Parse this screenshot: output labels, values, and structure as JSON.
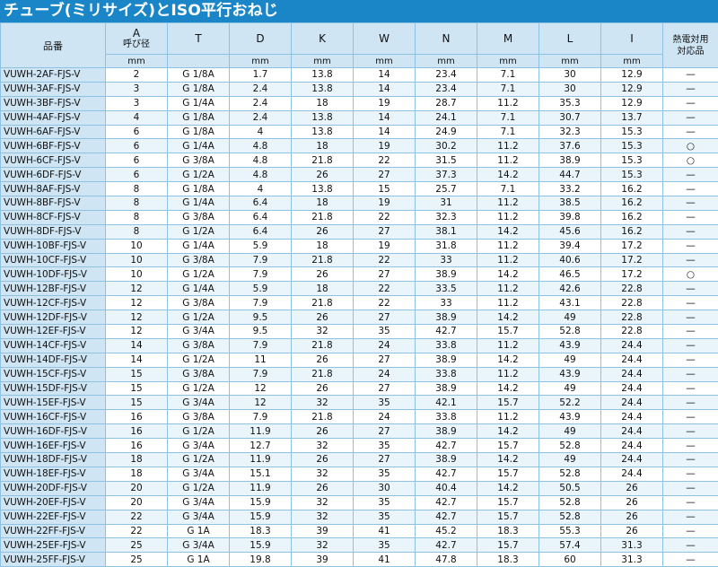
{
  "title": "チューブ(ミリサイズ)とISO平行おねじ",
  "header": {
    "part": "品番",
    "A": "A",
    "A_sub": "呼び径",
    "T": "T",
    "D": "D",
    "K": "K",
    "W": "W",
    "N": "N",
    "M": "M",
    "L": "L",
    "I": "I",
    "heat": "熱電対用\n対応品",
    "unit": "mm"
  },
  "rows": [
    [
      "VUWH-2AF-FJS-V",
      "2",
      "G 1/8A",
      "1.7",
      "13.8",
      "14",
      "23.4",
      "7.1",
      "30",
      "12.9",
      "—"
    ],
    [
      "VUWH-3AF-FJS-V",
      "3",
      "G 1/8A",
      "2.4",
      "13.8",
      "14",
      "23.4",
      "7.1",
      "30",
      "12.9",
      "—"
    ],
    [
      "VUWH-3BF-FJS-V",
      "3",
      "G 1/4A",
      "2.4",
      "18",
      "19",
      "28.7",
      "11.2",
      "35.3",
      "12.9",
      "—"
    ],
    [
      "VUWH-4AF-FJS-V",
      "4",
      "G 1/8A",
      "2.4",
      "13.8",
      "14",
      "24.1",
      "7.1",
      "30.7",
      "13.7",
      "—"
    ],
    [
      "VUWH-6AF-FJS-V",
      "6",
      "G 1/8A",
      "4",
      "13.8",
      "14",
      "24.9",
      "7.1",
      "32.3",
      "15.3",
      "—"
    ],
    [
      "VUWH-6BF-FJS-V",
      "6",
      "G 1/4A",
      "4.8",
      "18",
      "19",
      "30.2",
      "11.2",
      "37.6",
      "15.3",
      "○"
    ],
    [
      "VUWH-6CF-FJS-V",
      "6",
      "G 3/8A",
      "4.8",
      "21.8",
      "22",
      "31.5",
      "11.2",
      "38.9",
      "15.3",
      "○"
    ],
    [
      "VUWH-6DF-FJS-V",
      "6",
      "G 1/2A",
      "4.8",
      "26",
      "27",
      "37.3",
      "14.2",
      "44.7",
      "15.3",
      "—"
    ],
    [
      "VUWH-8AF-FJS-V",
      "8",
      "G 1/8A",
      "4",
      "13.8",
      "15",
      "25.7",
      "7.1",
      "33.2",
      "16.2",
      "—"
    ],
    [
      "VUWH-8BF-FJS-V",
      "8",
      "G 1/4A",
      "6.4",
      "18",
      "19",
      "31",
      "11.2",
      "38.5",
      "16.2",
      "—"
    ],
    [
      "VUWH-8CF-FJS-V",
      "8",
      "G 3/8A",
      "6.4",
      "21.8",
      "22",
      "32.3",
      "11.2",
      "39.8",
      "16.2",
      "—"
    ],
    [
      "VUWH-8DF-FJS-V",
      "8",
      "G 1/2A",
      "6.4",
      "26",
      "27",
      "38.1",
      "14.2",
      "45.6",
      "16.2",
      "—"
    ],
    [
      "VUWH-10BF-FJS-V",
      "10",
      "G 1/4A",
      "5.9",
      "18",
      "19",
      "31.8",
      "11.2",
      "39.4",
      "17.2",
      "—"
    ],
    [
      "VUWH-10CF-FJS-V",
      "10",
      "G 3/8A",
      "7.9",
      "21.8",
      "22",
      "33",
      "11.2",
      "40.6",
      "17.2",
      "—"
    ],
    [
      "VUWH-10DF-FJS-V",
      "10",
      "G 1/2A",
      "7.9",
      "26",
      "27",
      "38.9",
      "14.2",
      "46.5",
      "17.2",
      "○"
    ],
    [
      "VUWH-12BF-FJS-V",
      "12",
      "G 1/4A",
      "5.9",
      "18",
      "22",
      "33.5",
      "11.2",
      "42.6",
      "22.8",
      "—"
    ],
    [
      "VUWH-12CF-FJS-V",
      "12",
      "G 3/8A",
      "7.9",
      "21.8",
      "22",
      "33",
      "11.2",
      "43.1",
      "22.8",
      "—"
    ],
    [
      "VUWH-12DF-FJS-V",
      "12",
      "G 1/2A",
      "9.5",
      "26",
      "27",
      "38.9",
      "14.2",
      "49",
      "22.8",
      "—"
    ],
    [
      "VUWH-12EF-FJS-V",
      "12",
      "G 3/4A",
      "9.5",
      "32",
      "35",
      "42.7",
      "15.7",
      "52.8",
      "22.8",
      "—"
    ],
    [
      "VUWH-14CF-FJS-V",
      "14",
      "G 3/8A",
      "7.9",
      "21.8",
      "24",
      "33.8",
      "11.2",
      "43.9",
      "24.4",
      "—"
    ],
    [
      "VUWH-14DF-FJS-V",
      "14",
      "G 1/2A",
      "11",
      "26",
      "27",
      "38.9",
      "14.2",
      "49",
      "24.4",
      "—"
    ],
    [
      "VUWH-15CF-FJS-V",
      "15",
      "G 3/8A",
      "7.9",
      "21.8",
      "24",
      "33.8",
      "11.2",
      "43.9",
      "24.4",
      "—"
    ],
    [
      "VUWH-15DF-FJS-V",
      "15",
      "G 1/2A",
      "12",
      "26",
      "27",
      "38.9",
      "14.2",
      "49",
      "24.4",
      "—"
    ],
    [
      "VUWH-15EF-FJS-V",
      "15",
      "G 3/4A",
      "12",
      "32",
      "35",
      "42.1",
      "15.7",
      "52.2",
      "24.4",
      "—"
    ],
    [
      "VUWH-16CF-FJS-V",
      "16",
      "G 3/8A",
      "7.9",
      "21.8",
      "24",
      "33.8",
      "11.2",
      "43.9",
      "24.4",
      "—"
    ],
    [
      "VUWH-16DF-FJS-V",
      "16",
      "G 1/2A",
      "11.9",
      "26",
      "27",
      "38.9",
      "14.2",
      "49",
      "24.4",
      "—"
    ],
    [
      "VUWH-16EF-FJS-V",
      "16",
      "G 3/4A",
      "12.7",
      "32",
      "35",
      "42.7",
      "15.7",
      "52.8",
      "24.4",
      "—"
    ],
    [
      "VUWH-18DF-FJS-V",
      "18",
      "G 1/2A",
      "11.9",
      "26",
      "27",
      "38.9",
      "14.2",
      "49",
      "24.4",
      "—"
    ],
    [
      "VUWH-18EF-FJS-V",
      "18",
      "G 3/4A",
      "15.1",
      "32",
      "35",
      "42.7",
      "15.7",
      "52.8",
      "24.4",
      "—"
    ],
    [
      "VUWH-20DF-FJS-V",
      "20",
      "G 1/2A",
      "11.9",
      "26",
      "30",
      "40.4",
      "14.2",
      "50.5",
      "26",
      "—"
    ],
    [
      "VUWH-20EF-FJS-V",
      "20",
      "G 3/4A",
      "15.9",
      "32",
      "35",
      "42.7",
      "15.7",
      "52.8",
      "26",
      "—"
    ],
    [
      "VUWH-22EF-FJS-V",
      "22",
      "G 3/4A",
      "15.9",
      "32",
      "35",
      "42.7",
      "15.7",
      "52.8",
      "26",
      "—"
    ],
    [
      "VUWH-22FF-FJS-V",
      "22",
      "G 1A",
      "18.3",
      "39",
      "41",
      "45.2",
      "18.3",
      "55.3",
      "26",
      "—"
    ],
    [
      "VUWH-25EF-FJS-V",
      "25",
      "G 3/4A",
      "15.9",
      "32",
      "35",
      "42.7",
      "15.7",
      "57.4",
      "31.3",
      "—"
    ],
    [
      "VUWH-25FF-FJS-V",
      "25",
      "G 1A",
      "19.8",
      "39",
      "41",
      "47.8",
      "18.3",
      "60",
      "31.3",
      "—"
    ]
  ]
}
